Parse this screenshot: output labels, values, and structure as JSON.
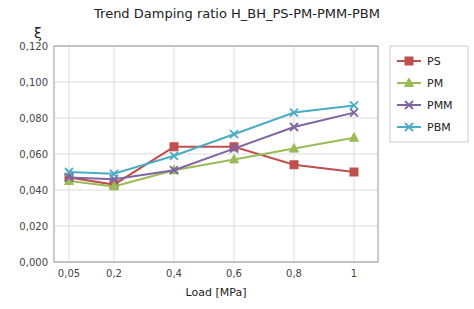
{
  "chart_data": {
    "type": "line",
    "title": "Trend Damping ratio H_BH_PS-PM-PMM-PBM",
    "x_label": "Load [MPa]",
    "y_label": "ξ",
    "x": [
      0.05,
      0.2,
      0.4,
      0.6,
      0.8,
      1.0
    ],
    "xlim": [
      0.0,
      1.08
    ],
    "xticks": [
      {
        "value": 0.05,
        "label": "0,05"
      },
      {
        "value": 0.2,
        "label": "0,2"
      },
      {
        "value": 0.4,
        "label": "0,4"
      },
      {
        "value": 0.6,
        "label": "0,6"
      },
      {
        "value": 0.8,
        "label": "0,8"
      },
      1
    ],
    "ylim": [
      0.0,
      0.12
    ],
    "yticks": [
      {
        "value": 0.0,
        "label": "0,000"
      },
      {
        "value": 0.02,
        "label": "0,020"
      },
      {
        "value": 0.04,
        "label": "0,040"
      },
      {
        "value": 0.06,
        "label": "0,060"
      },
      {
        "value": 0.08,
        "label": "0,080"
      },
      {
        "value": 0.1,
        "label": "0,100"
      },
      {
        "value": 0.12,
        "label": "0,120"
      }
    ],
    "series": [
      {
        "name": "PS",
        "color": "#c0504d",
        "marker": "square",
        "values": [
          0.047,
          0.043,
          0.064,
          0.064,
          0.054,
          0.05
        ]
      },
      {
        "name": "PM",
        "color": "#9bbb59",
        "marker": "triangle",
        "values": [
          0.045,
          0.042,
          0.051,
          0.057,
          0.063,
          0.069
        ]
      },
      {
        "name": "PMM",
        "color": "#8064a2",
        "marker": "x",
        "values": [
          0.047,
          0.046,
          0.051,
          0.063,
          0.075,
          0.083
        ]
      },
      {
        "name": "PBM",
        "color": "#4bacc6",
        "marker": "x",
        "values": [
          0.05,
          0.049,
          0.059,
          0.071,
          0.083,
          0.087
        ]
      }
    ],
    "grid": true,
    "legend": "right"
  }
}
